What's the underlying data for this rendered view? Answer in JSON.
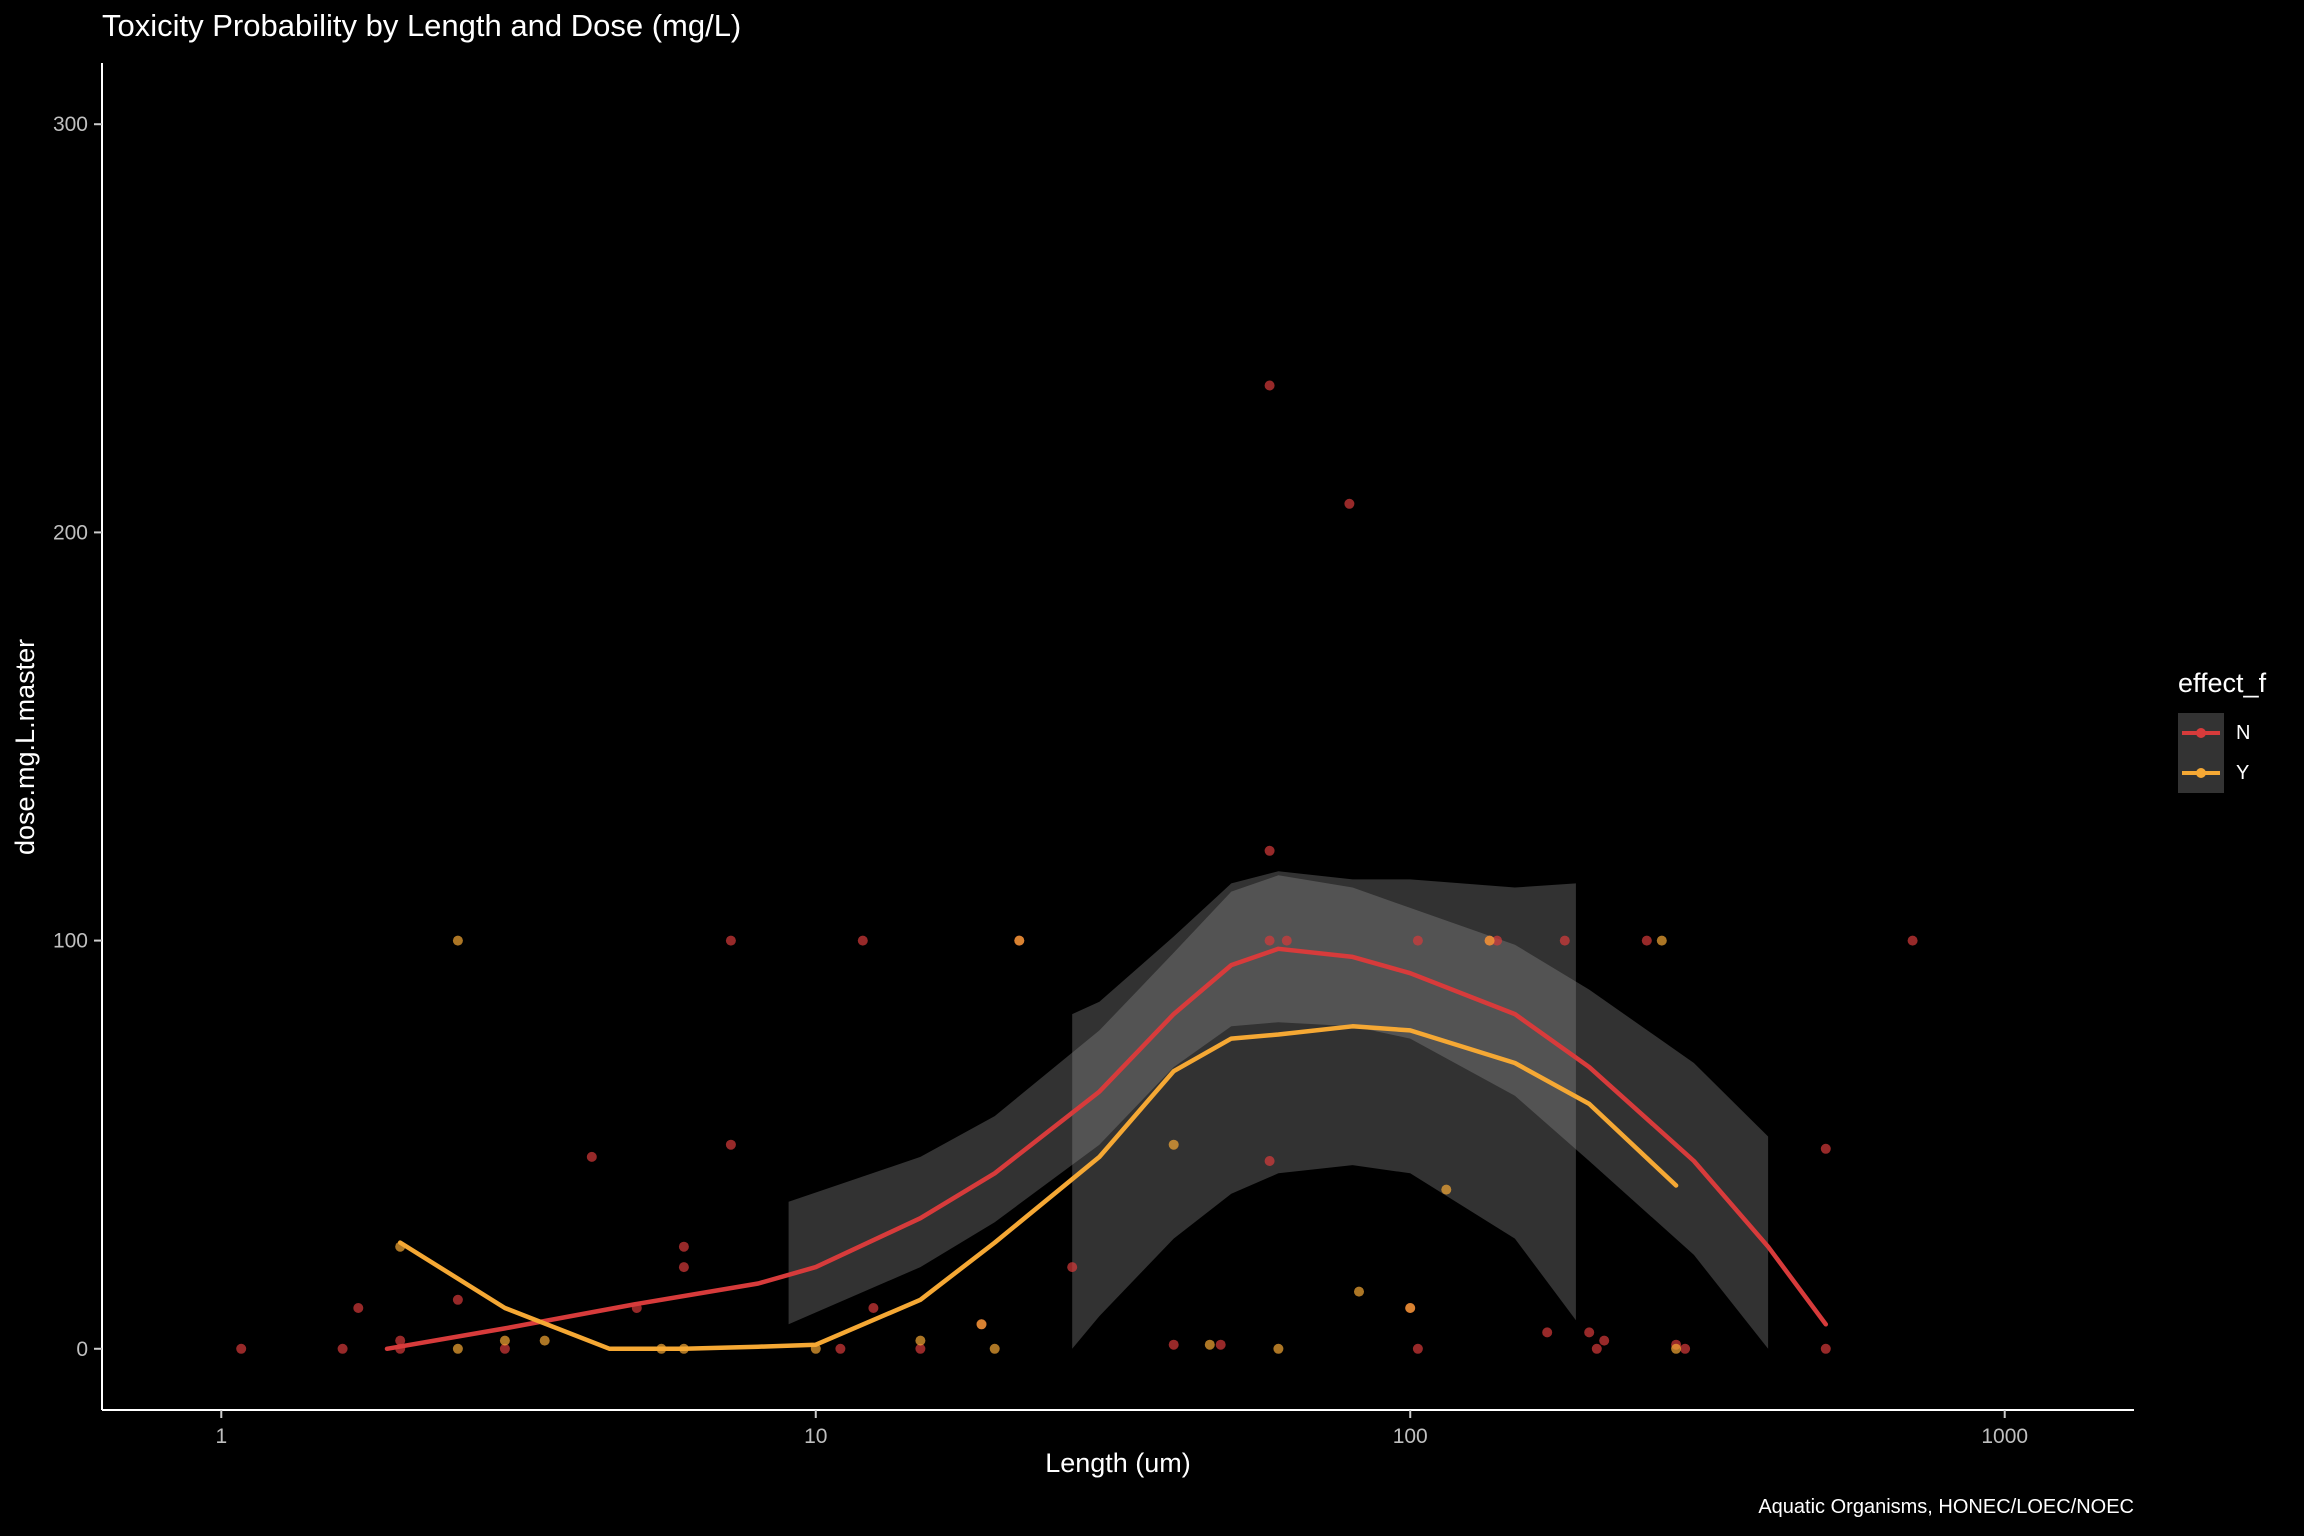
{
  "chart_data": {
    "type": "scatter",
    "title": "Toxicity Probability by Length and Dose (mg/L)",
    "xlabel": "Length (um)",
    "ylabel": "dose.mg.L.master",
    "caption": "Aquatic Organisms, HONEC/LOEC/NOEC",
    "x_scale": "log10",
    "xlim": [
      0.63,
      1650
    ],
    "ylim": [
      -15,
      315
    ],
    "x_ticks": [
      1,
      10,
      100,
      1000
    ],
    "x_tick_labels": [
      "1",
      "10",
      "100",
      "1000"
    ],
    "y_ticks": [
      0,
      100,
      200,
      300
    ],
    "y_tick_labels": [
      "0",
      "100",
      "200",
      "300"
    ],
    "grid": false,
    "legend": {
      "title": "effect_f",
      "position": "right"
    },
    "series": [
      {
        "name": "N",
        "color": "#d73b3b",
        "points": [
          [
            1.08,
            0
          ],
          [
            1.6,
            0
          ],
          [
            1.7,
            10
          ],
          [
            2,
            2
          ],
          [
            2,
            0
          ],
          [
            2.5,
            12
          ],
          [
            3,
            0
          ],
          [
            4.2,
            47
          ],
          [
            5,
            10
          ],
          [
            6,
            25
          ],
          [
            6,
            20
          ],
          [
            7.2,
            100
          ],
          [
            7.2,
            50
          ],
          [
            11,
            0
          ],
          [
            12,
            100
          ],
          [
            12.5,
            10
          ],
          [
            15,
            0
          ],
          [
            19,
            6
          ],
          [
            22,
            100
          ],
          [
            27,
            20
          ],
          [
            40,
            1
          ],
          [
            48,
            1
          ],
          [
            58,
            236
          ],
          [
            58,
            122
          ],
          [
            58,
            100
          ],
          [
            58,
            46
          ],
          [
            62,
            100
          ],
          [
            79,
            207
          ],
          [
            100,
            10
          ],
          [
            103,
            100
          ],
          [
            103,
            0
          ],
          [
            136,
            100
          ],
          [
            140,
            100
          ],
          [
            170,
            4
          ],
          [
            182,
            100
          ],
          [
            200,
            4
          ],
          [
            206,
            0
          ],
          [
            212,
            2
          ],
          [
            250,
            100
          ],
          [
            280,
            1
          ],
          [
            290,
            0
          ],
          [
            500,
            49
          ],
          [
            500,
            0
          ],
          [
            700,
            100
          ]
        ],
        "smooth": {
          "x": [
            1.9,
            3,
            5,
            8,
            10,
            15,
            20,
            30,
            40,
            50,
            60,
            80,
            100,
            150,
            200,
            300,
            400,
            500
          ],
          "y": [
            0,
            5,
            11,
            16,
            20,
            32,
            43,
            63,
            82,
            94,
            98,
            96,
            92,
            82,
            69,
            46,
            25,
            6
          ]
        },
        "ribbon": {
          "x": [
            9,
            15,
            20,
            30,
            40,
            50,
            60,
            80,
            100,
            150,
            200,
            300,
            400
          ],
          "ymin": [
            6,
            20,
            31,
            50,
            69,
            79,
            80,
            79,
            76,
            62,
            46,
            23,
            0
          ],
          "ymax": [
            36,
            47,
            57,
            78,
            97,
            112,
            116,
            113,
            108,
            99,
            88,
            70,
            52
          ]
        }
      },
      {
        "name": "Y",
        "color": "#f5a834",
        "points": [
          [
            2,
            25
          ],
          [
            2.5,
            100
          ],
          [
            2.5,
            0
          ],
          [
            3,
            2
          ],
          [
            3.5,
            2
          ],
          [
            5.5,
            0
          ],
          [
            6,
            0
          ],
          [
            10,
            0
          ],
          [
            15,
            2
          ],
          [
            19,
            6
          ],
          [
            20,
            0
          ],
          [
            22,
            100
          ],
          [
            40,
            50
          ],
          [
            46,
            1
          ],
          [
            60,
            0
          ],
          [
            82,
            14
          ],
          [
            100,
            10
          ],
          [
            115,
            39
          ],
          [
            136,
            100
          ],
          [
            265,
            100
          ],
          [
            280,
            0
          ]
        ],
        "smooth": {
          "x": [
            2,
            3,
            4.5,
            6,
            8,
            10,
            15,
            20,
            30,
            40,
            50,
            60,
            80,
            100,
            150,
            200,
            280
          ],
          "y": [
            26,
            10,
            0,
            0,
            0.5,
            1,
            12,
            26,
            47,
            68,
            76,
            77,
            79,
            78,
            70,
            60,
            40
          ]
        },
        "ribbon": {
          "x": [
            27,
            30,
            40,
            50,
            60,
            80,
            100,
            150,
            190
          ],
          "ymin": [
            0,
            8,
            27,
            38,
            43,
            45,
            43,
            27,
            7
          ],
          "ymax": [
            82,
            85,
            101,
            114,
            117,
            115,
            115,
            113,
            114
          ]
        }
      }
    ]
  }
}
